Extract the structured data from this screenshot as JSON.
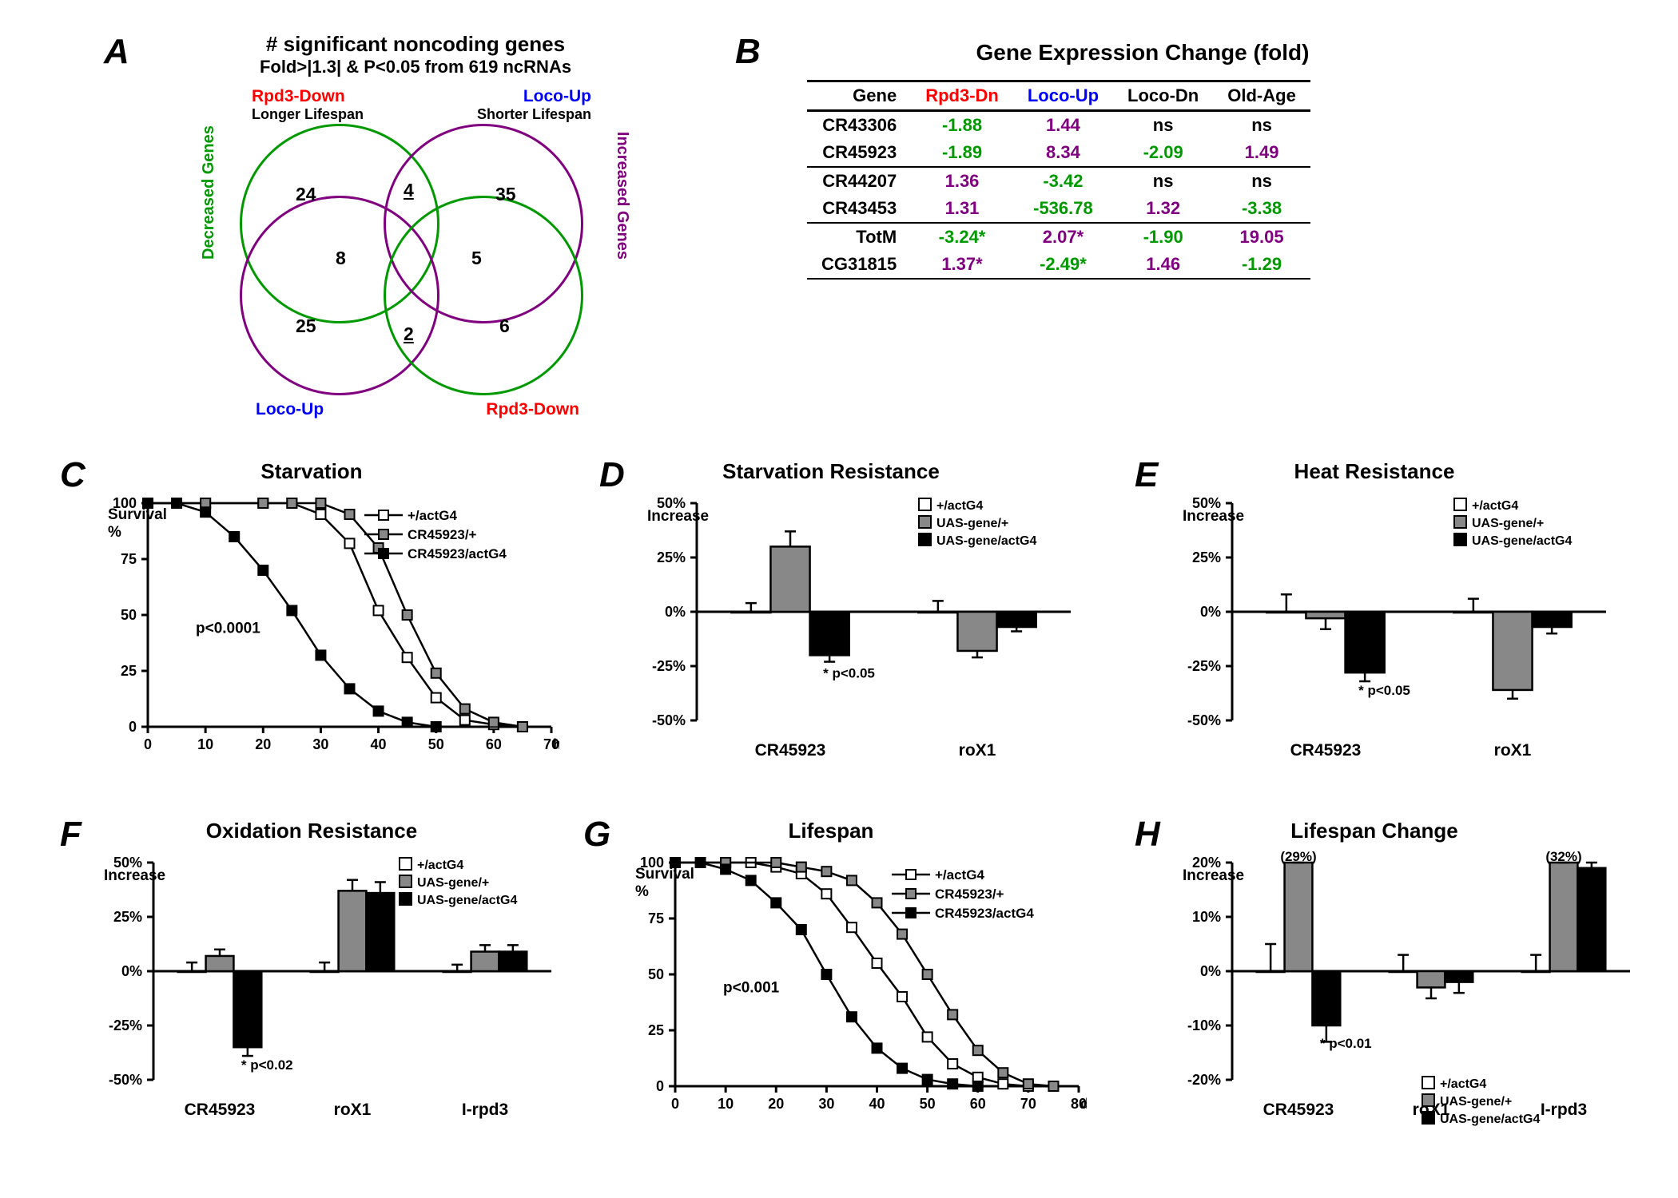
{
  "panelA": {
    "letter": "A",
    "title": "# significant noncoding genes",
    "subtitle": "Fold>|1.3| & P<0.05 from 619 ncRNAs",
    "labels": {
      "tl": "Rpd3-Down",
      "tl_sub": "Longer Lifespan",
      "tr": "Loco-Up",
      "tr_sub": "Shorter Lifespan",
      "bl": "Loco-Up",
      "br": "Rpd3-Down",
      "left_side": "Decreased Genes",
      "right_side": "Increased Genes"
    },
    "numbers": {
      "tl": "24",
      "tr": "35",
      "top_inter": "4",
      "left_inter": "8",
      "right_inter": "5",
      "bl": "25",
      "br": "6",
      "bot_inter": "2"
    },
    "colors": {
      "top_circles": "#009900",
      "bottom_circles": "#800080",
      "side_left": "#009900",
      "side_right": "#800080"
    }
  },
  "panelB": {
    "letter": "B",
    "title": "Gene Expression Change (fold)",
    "columns": [
      "Gene",
      "Rpd3-Dn",
      "Loco-Up",
      "Loco-Dn",
      "Old-Age"
    ],
    "rows": [
      {
        "gene": "CR43306",
        "v": [
          "-1.88",
          "1.44",
          "ns",
          "ns"
        ],
        "sect": false
      },
      {
        "gene": "CR45923",
        "v": [
          "-1.89",
          "8.34",
          "-2.09",
          "1.49"
        ],
        "sect": true
      },
      {
        "gene": "CR44207",
        "v": [
          "1.36",
          "-3.42",
          "ns",
          "ns"
        ],
        "sect": false
      },
      {
        "gene": "CR43453",
        "v": [
          "1.31",
          "-536.78",
          "1.32",
          "-3.38"
        ],
        "sect": true
      },
      {
        "gene": "TotM",
        "v": [
          "-3.24*",
          "2.07*",
          "-1.90",
          "19.05"
        ],
        "sect": false
      },
      {
        "gene": "CG31815",
        "v": [
          "1.37*",
          "-2.49*",
          "1.46",
          "-1.29"
        ],
        "sect": true
      }
    ]
  },
  "panelC": {
    "letter": "C",
    "title": "Starvation",
    "ylabel_top": "Survival",
    "ylabel_bot": "%",
    "xunit": "hr",
    "pval": "p<0.0001",
    "xlim": [
      0,
      70
    ],
    "xtick": 10,
    "ylim": [
      0,
      100
    ],
    "ytick": 25,
    "series": [
      {
        "name": "+/actG4",
        "marker": "open-square",
        "color": "#000",
        "data": [
          [
            0,
            100
          ],
          [
            10,
            100
          ],
          [
            20,
            100
          ],
          [
            25,
            100
          ],
          [
            30,
            95
          ],
          [
            35,
            82
          ],
          [
            40,
            52
          ],
          [
            45,
            31
          ],
          [
            50,
            13
          ],
          [
            55,
            3
          ],
          [
            60,
            1
          ],
          [
            65,
            0
          ]
        ]
      },
      {
        "name": "CR45923/+",
        "marker": "grey-square",
        "color": "#888",
        "data": [
          [
            0,
            100
          ],
          [
            10,
            100
          ],
          [
            20,
            100
          ],
          [
            25,
            100
          ],
          [
            30,
            100
          ],
          [
            35,
            95
          ],
          [
            40,
            80
          ],
          [
            45,
            50
          ],
          [
            50,
            24
          ],
          [
            55,
            8
          ],
          [
            60,
            2
          ],
          [
            65,
            0
          ]
        ]
      },
      {
        "name": "CR45923/actG4",
        "marker": "black-square",
        "color": "#000",
        "data": [
          [
            0,
            100
          ],
          [
            5,
            100
          ],
          [
            10,
            96
          ],
          [
            15,
            85
          ],
          [
            20,
            70
          ],
          [
            25,
            52
          ],
          [
            30,
            32
          ],
          [
            35,
            17
          ],
          [
            40,
            7
          ],
          [
            45,
            2
          ],
          [
            50,
            0
          ]
        ]
      }
    ]
  },
  "panelD": {
    "letter": "D",
    "title": "Starvation Resistance",
    "ylabel": "Increase",
    "pval": "* p<0.05",
    "ylim": [
      -50,
      50
    ],
    "ytick": 25,
    "groups": [
      "CR45923",
      "roX1"
    ],
    "legend": [
      "+/actG4",
      "UAS-gene/+",
      "UAS-gene/actG4"
    ],
    "colors": [
      "#ffffff",
      "#888888",
      "#000000"
    ],
    "data": [
      [
        {
          "v": 0,
          "err": 4
        },
        {
          "v": 30,
          "err": 7
        },
        {
          "v": -20,
          "err": 3
        }
      ],
      [
        {
          "v": 0,
          "err": 5
        },
        {
          "v": -18,
          "err": 3
        },
        {
          "v": -7,
          "err": 2
        }
      ]
    ],
    "star_on": [
      0,
      2
    ]
  },
  "panelE": {
    "letter": "E",
    "title": "Heat Resistance",
    "ylabel": "Increase",
    "pval": "* p<0.05",
    "ylim": [
      -50,
      50
    ],
    "ytick": 25,
    "groups": [
      "CR45923",
      "roX1"
    ],
    "legend": [
      "+/actG4",
      "UAS-gene/+",
      "UAS-gene/actG4"
    ],
    "colors": [
      "#ffffff",
      "#888888",
      "#000000"
    ],
    "data": [
      [
        {
          "v": 0,
          "err": 8
        },
        {
          "v": -3,
          "err": 5
        },
        {
          "v": -28,
          "err": 4
        }
      ],
      [
        {
          "v": 0,
          "err": 6
        },
        {
          "v": -36,
          "err": 4
        },
        {
          "v": -7,
          "err": 3
        }
      ]
    ],
    "star_on": [
      0,
      2
    ]
  },
  "panelF": {
    "letter": "F",
    "title": "Oxidation Resistance",
    "ylabel": "Increase",
    "pval": "* p<0.02",
    "ylim": [
      -50,
      50
    ],
    "ytick": 25,
    "groups": [
      "CR45923",
      "roX1",
      "I-rpd3"
    ],
    "legend": [
      "+/actG4",
      "UAS-gene/+",
      "UAS-gene/actG4"
    ],
    "colors": [
      "#ffffff",
      "#888888",
      "#000000"
    ],
    "data": [
      [
        {
          "v": 0,
          "err": 4
        },
        {
          "v": 7,
          "err": 3
        },
        {
          "v": -35,
          "err": 4
        }
      ],
      [
        {
          "v": 0,
          "err": 4
        },
        {
          "v": 37,
          "err": 5
        },
        {
          "v": 36,
          "err": 5
        }
      ],
      [
        {
          "v": 0,
          "err": 3
        },
        {
          "v": 9,
          "err": 3
        },
        {
          "v": 9,
          "err": 3
        }
      ]
    ],
    "star_on": [
      0,
      2
    ]
  },
  "panelG": {
    "letter": "G",
    "title": "Lifespan",
    "ylabel_top": "Survival",
    "ylabel_bot": "%",
    "xunit": "day",
    "pval": "p<0.001",
    "xlim": [
      0,
      80
    ],
    "xtick": 10,
    "ylim": [
      0,
      100
    ],
    "ytick": 25,
    "series": [
      {
        "name": "+/actG4",
        "marker": "open-square",
        "color": "#000",
        "data": [
          [
            0,
            100
          ],
          [
            10,
            100
          ],
          [
            15,
            100
          ],
          [
            20,
            98
          ],
          [
            25,
            95
          ],
          [
            30,
            86
          ],
          [
            35,
            71
          ],
          [
            40,
            55
          ],
          [
            45,
            40
          ],
          [
            50,
            22
          ],
          [
            55,
            10
          ],
          [
            60,
            4
          ],
          [
            65,
            1
          ],
          [
            70,
            0
          ]
        ]
      },
      {
        "name": "CR45923/+",
        "marker": "grey-square",
        "color": "#888",
        "data": [
          [
            0,
            100
          ],
          [
            10,
            100
          ],
          [
            20,
            100
          ],
          [
            25,
            98
          ],
          [
            30,
            96
          ],
          [
            35,
            92
          ],
          [
            40,
            82
          ],
          [
            45,
            68
          ],
          [
            50,
            50
          ],
          [
            55,
            32
          ],
          [
            60,
            16
          ],
          [
            65,
            6
          ],
          [
            70,
            1
          ],
          [
            75,
            0
          ]
        ]
      },
      {
        "name": "CR45923/actG4",
        "marker": "black-square",
        "color": "#000",
        "data": [
          [
            0,
            100
          ],
          [
            5,
            100
          ],
          [
            10,
            97
          ],
          [
            15,
            92
          ],
          [
            20,
            82
          ],
          [
            25,
            70
          ],
          [
            30,
            50
          ],
          [
            35,
            31
          ],
          [
            40,
            17
          ],
          [
            45,
            8
          ],
          [
            50,
            3
          ],
          [
            55,
            1
          ],
          [
            60,
            0
          ]
        ]
      }
    ]
  },
  "panelH": {
    "letter": "H",
    "title": "Lifespan Change",
    "ylabel": "Increase",
    "pval": "* p<0.01",
    "ylim": [
      -20,
      20
    ],
    "ytick": 10,
    "groups": [
      "CR45923",
      "roX1",
      "I-rpd3"
    ],
    "legend": [
      "+/actG4",
      "UAS-gene/+",
      "UAS-gene/actG4"
    ],
    "colors": [
      "#ffffff",
      "#888888",
      "#000000"
    ],
    "data": [
      [
        {
          "v": 0,
          "err": 5
        },
        {
          "v": 29,
          "err": 0,
          "overflow": "(29%)"
        },
        {
          "v": -10,
          "err": 3
        }
      ],
      [
        {
          "v": 0,
          "err": 3
        },
        {
          "v": -3,
          "err": 2
        },
        {
          "v": -2,
          "err": 2
        }
      ],
      [
        {
          "v": 0,
          "err": 3
        },
        {
          "v": 32,
          "err": 0,
          "overflow": "(32%)"
        },
        {
          "v": 19,
          "err": 2
        }
      ]
    ],
    "star_on": [
      0,
      2
    ]
  }
}
